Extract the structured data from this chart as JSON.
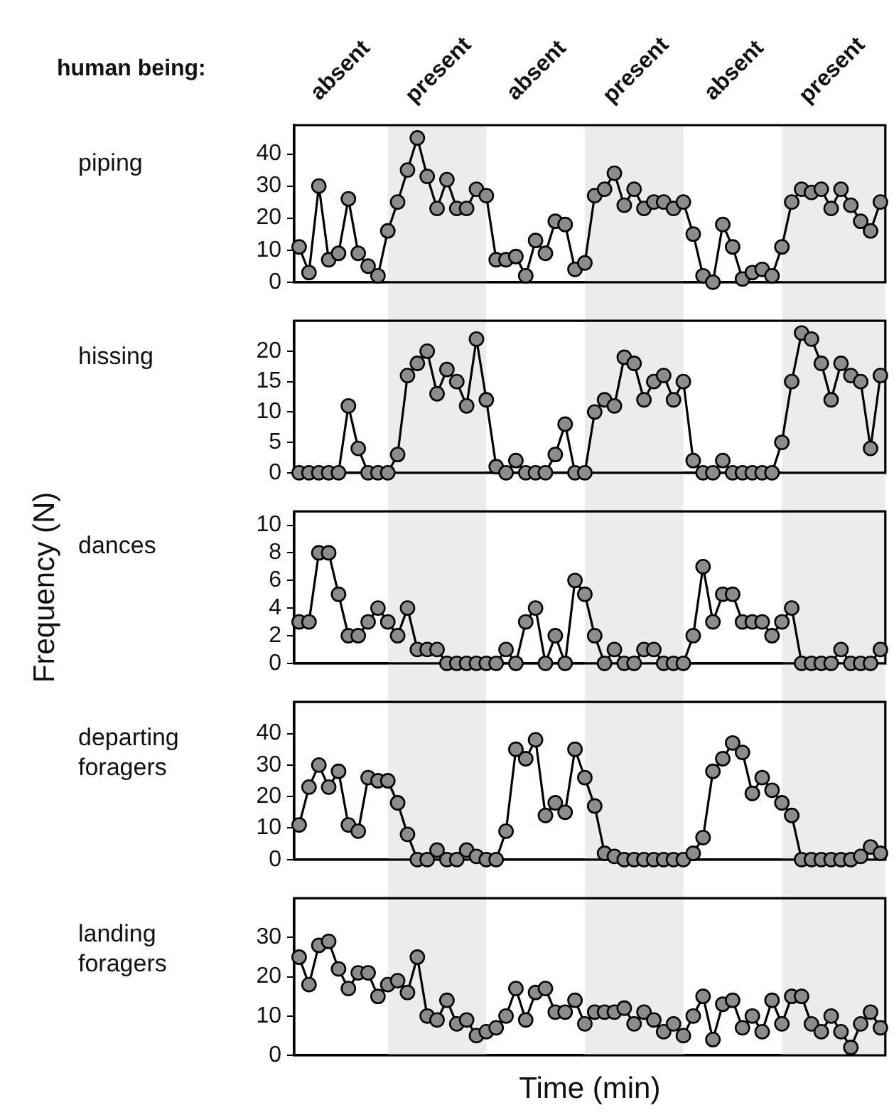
{
  "chart_data": [
    {
      "type": "line",
      "title": "piping",
      "annotations": [
        "human being:",
        "absent",
        "present",
        "absent",
        "present",
        "absent",
        "present"
      ],
      "color": "#000000",
      "marker": "circle",
      "tick_labels": "y",
      "categories": [
        null,
        null,
        null,
        null,
        null,
        null,
        null,
        null,
        null,
        null,
        null,
        null,
        null,
        null,
        null,
        null,
        null,
        null,
        null,
        null,
        null,
        null,
        null,
        null,
        null,
        null,
        null,
        null,
        null,
        null,
        null,
        null,
        null,
        null,
        null,
        null,
        null,
        null,
        null,
        null,
        null,
        null,
        null,
        null,
        null,
        null,
        null,
        null,
        null,
        null,
        null,
        null,
        null,
        null,
        null,
        null,
        null,
        null,
        null,
        null
      ],
      "values": [
        11,
        3,
        30,
        7,
        9,
        26,
        9,
        5,
        2,
        16,
        25,
        35,
        45,
        33,
        23,
        32,
        23,
        23,
        29,
        27,
        7,
        7,
        8,
        2,
        13,
        9,
        19,
        18,
        4,
        6,
        27,
        29,
        34,
        24,
        29,
        23,
        25,
        25,
        23,
        25,
        15,
        2,
        0,
        18,
        11,
        1,
        3,
        4,
        2,
        11,
        25,
        29,
        28,
        29,
        23,
        29,
        24,
        19,
        16,
        25
      ],
      "ylim": [
        0,
        49
      ],
      "yticks": [
        0,
        10,
        20,
        30,
        40
      ]
    },
    {
      "type": "line",
      "title": "hissing",
      "color": "#000000",
      "marker": "circle",
      "tick_labels": "y",
      "categories": [
        null,
        null,
        null,
        null,
        null,
        null,
        null,
        null,
        null,
        null,
        null,
        null,
        null,
        null,
        null,
        null,
        null,
        null,
        null,
        null,
        null,
        null,
        null,
        null,
        null,
        null,
        null,
        null,
        null,
        null,
        null,
        null,
        null,
        null,
        null,
        null,
        null,
        null,
        null,
        null,
        null,
        null,
        null,
        null,
        null,
        null,
        null,
        null,
        null,
        null,
        null,
        null,
        null,
        null,
        null,
        null,
        null,
        null,
        null,
        null
      ],
      "values": [
        0,
        0,
        0,
        0,
        0,
        11,
        4,
        0,
        0,
        0,
        3,
        16,
        18,
        20,
        13,
        17,
        15,
        11,
        22,
        12,
        1,
        0,
        2,
        0,
        0,
        0,
        3,
        8,
        0,
        0,
        10,
        12,
        11,
        19,
        18,
        12,
        15,
        16,
        12,
        15,
        2,
        0,
        0,
        2,
        0,
        0,
        0,
        0,
        0,
        5,
        15,
        23,
        22,
        18,
        12,
        18,
        16,
        15,
        4,
        16
      ],
      "ylim": [
        0,
        25
      ],
      "yticks": [
        0,
        5,
        10,
        15,
        20
      ]
    },
    {
      "type": "line",
      "title": "dances",
      "ylabel": "Frequency (N)",
      "color": "#000000",
      "marker": "circle",
      "tick_labels": "y",
      "categories": [
        null,
        null,
        null,
        null,
        null,
        null,
        null,
        null,
        null,
        null,
        null,
        null,
        null,
        null,
        null,
        null,
        null,
        null,
        null,
        null,
        null,
        null,
        null,
        null,
        null,
        null,
        null,
        null,
        null,
        null,
        null,
        null,
        null,
        null,
        null,
        null,
        null,
        null,
        null,
        null,
        null,
        null,
        null,
        null,
        null,
        null,
        null,
        null,
        null,
        null,
        null,
        null,
        null,
        null,
        null,
        null,
        null,
        null,
        null,
        null
      ],
      "values": [
        3,
        3,
        8,
        8,
        5,
        2,
        2,
        3,
        4,
        3,
        2,
        4,
        1,
        1,
        1,
        0,
        0,
        0,
        0,
        0,
        0,
        1,
        0,
        3,
        4,
        0,
        2,
        0,
        6,
        5,
        2,
        0,
        1,
        0,
        0,
        1,
        1,
        0,
        0,
        0,
        2,
        7,
        3,
        5,
        5,
        3,
        3,
        3,
        2,
        3,
        4,
        0,
        0,
        0,
        0,
        1,
        0,
        0,
        0,
        1
      ],
      "ylim": [
        0,
        11
      ],
      "yticks": [
        0,
        2,
        4,
        6,
        8,
        10
      ]
    },
    {
      "type": "line",
      "title": "departing foragers",
      "color": "#000000",
      "marker": "circle",
      "tick_labels": "y",
      "categories": [
        null,
        null,
        null,
        null,
        null,
        null,
        null,
        null,
        null,
        null,
        null,
        null,
        null,
        null,
        null,
        null,
        null,
        null,
        null,
        null,
        null,
        null,
        null,
        null,
        null,
        null,
        null,
        null,
        null,
        null,
        null,
        null,
        null,
        null,
        null,
        null,
        null,
        null,
        null,
        null,
        null,
        null,
        null,
        null,
        null,
        null,
        null,
        null,
        null,
        null,
        null,
        null,
        null,
        null,
        null,
        null,
        null,
        null,
        null,
        null
      ],
      "values": [
        11,
        23,
        30,
        23,
        28,
        11,
        9,
        26,
        25,
        25,
        18,
        8,
        0,
        0,
        3,
        0,
        0,
        3,
        1,
        0,
        0,
        9,
        35,
        32,
        38,
        14,
        18,
        15,
        35,
        26,
        17,
        2,
        1,
        0,
        0,
        0,
        0,
        0,
        0,
        0,
        2,
        7,
        28,
        32,
        37,
        34,
        21,
        26,
        22,
        18,
        14,
        0,
        0,
        0,
        0,
        0,
        0,
        1,
        4,
        2
      ],
      "ylim": [
        0,
        50
      ],
      "yticks": [
        0,
        10,
        20,
        30,
        40
      ]
    },
    {
      "type": "line",
      "title": "landing foragers",
      "xlabel": "Time (min)",
      "color": "#000000",
      "marker": "circle",
      "tick_labels": "y",
      "categories": [
        null,
        null,
        null,
        null,
        null,
        null,
        null,
        null,
        null,
        null,
        null,
        null,
        null,
        null,
        null,
        null,
        null,
        null,
        null,
        null,
        null,
        null,
        null,
        null,
        null,
        null,
        null,
        null,
        null,
        null,
        null,
        null,
        null,
        null,
        null,
        null,
        null,
        null,
        null,
        null,
        null,
        null,
        null,
        null,
        null,
        null,
        null,
        null,
        null,
        null,
        null,
        null,
        null,
        null,
        null,
        null,
        null,
        null,
        null,
        null
      ],
      "values": [
        25,
        18,
        28,
        29,
        22,
        17,
        21,
        21,
        15,
        18,
        19,
        16,
        25,
        10,
        9,
        14,
        8,
        9,
        5,
        6,
        7,
        10,
        17,
        9,
        16,
        17,
        11,
        11,
        14,
        8,
        11,
        11,
        11,
        12,
        8,
        11,
        9,
        6,
        8,
        5,
        10,
        15,
        4,
        13,
        14,
        7,
        10,
        6,
        14,
        8,
        15,
        15,
        8,
        6,
        10,
        6,
        2,
        8,
        11,
        7
      ],
      "ylim": [
        0,
        40
      ],
      "yticks": [
        0,
        10,
        20,
        30
      ]
    }
  ]
}
